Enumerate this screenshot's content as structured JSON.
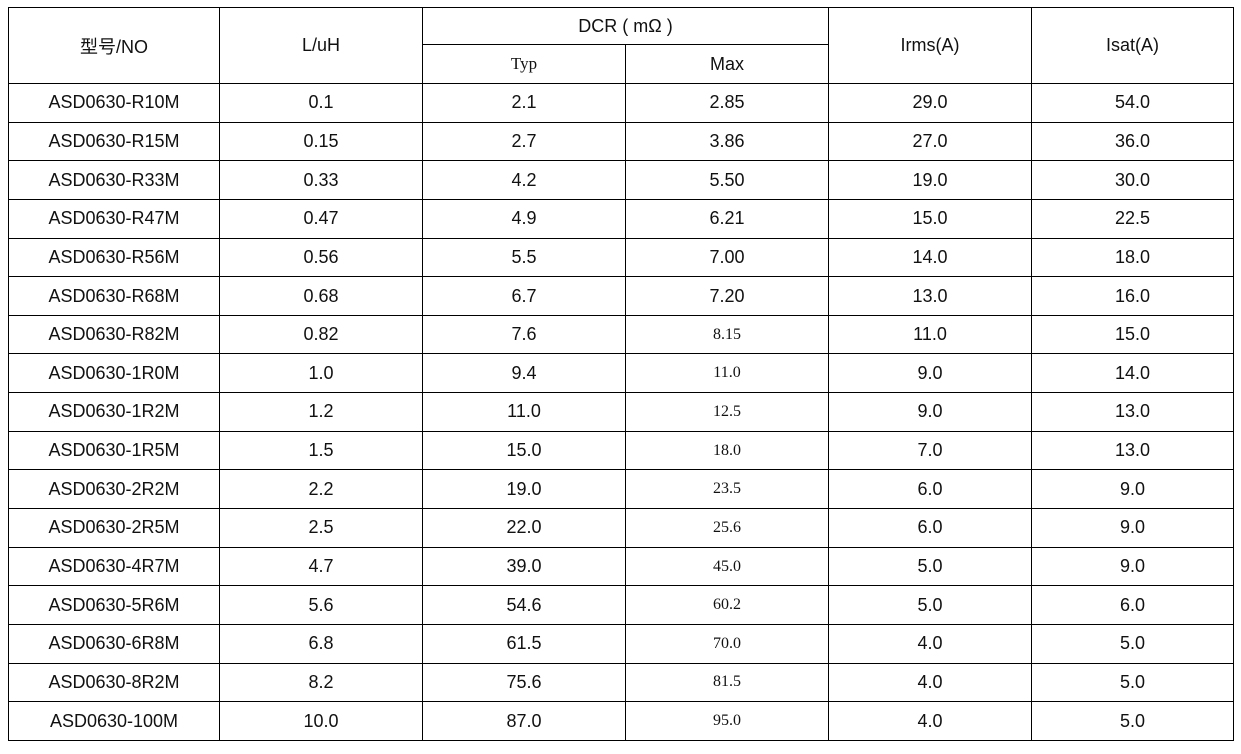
{
  "table": {
    "header": {
      "model": "型号/NO",
      "inductance": "L/uH",
      "dcr": "DCR ( mΩ )",
      "typ": "Typ",
      "max": "Max",
      "irms": "Irms(A)",
      "isat": "Isat(A)"
    },
    "rows": [
      [
        "ASD0630-R10M",
        "0.1",
        "2.1",
        "2.85",
        "29.0",
        "54.0"
      ],
      [
        "ASD0630-R15M",
        "0.15",
        "2.7",
        "3.86",
        "27.0",
        "36.0"
      ],
      [
        "ASD0630-R33M",
        "0.33",
        "4.2",
        "5.50",
        "19.0",
        "30.0"
      ],
      [
        "ASD0630-R47M",
        "0.47",
        "4.9",
        "6.21",
        "15.0",
        "22.5"
      ],
      [
        "ASD0630-R56M",
        "0.56",
        "5.5",
        "7.00",
        "14.0",
        "18.0"
      ],
      [
        "ASD0630-R68M",
        "0.68",
        "6.7",
        "7.20",
        "13.0",
        "16.0"
      ],
      [
        "ASD0630-R82M",
        "0.82",
        "7.6",
        "8.15",
        "11.0",
        "15.0"
      ],
      [
        "ASD0630-1R0M",
        "1.0",
        "9.4",
        "11.0",
        "9.0",
        "14.0"
      ],
      [
        "ASD0630-1R2M",
        "1.2",
        "11.0",
        "12.5",
        "9.0",
        "13.0"
      ],
      [
        "ASD0630-1R5M",
        "1.5",
        "15.0",
        "18.0",
        "7.0",
        "13.0"
      ],
      [
        "ASD0630-2R2M",
        "2.2",
        "19.0",
        "23.5",
        "6.0",
        "9.0"
      ],
      [
        "ASD0630-2R5M",
        "2.5",
        "22.0",
        "25.6",
        "6.0",
        "9.0"
      ],
      [
        "ASD0630-4R7M",
        "4.7",
        "39.0",
        "45.0",
        "5.0",
        "9.0"
      ],
      [
        "ASD0630-5R6M",
        "5.6",
        "54.6",
        "60.2",
        "5.0",
        "6.0"
      ],
      [
        "ASD0630-6R8M",
        "6.8",
        "61.5",
        "70.0",
        "4.0",
        "5.0"
      ],
      [
        "ASD0630-8R2M",
        "8.2",
        "75.6",
        "81.5",
        "4.0",
        "5.0"
      ],
      [
        "ASD0630-100M",
        "10.0",
        "87.0",
        "95.0",
        "4.0",
        "5.0"
      ]
    ]
  }
}
